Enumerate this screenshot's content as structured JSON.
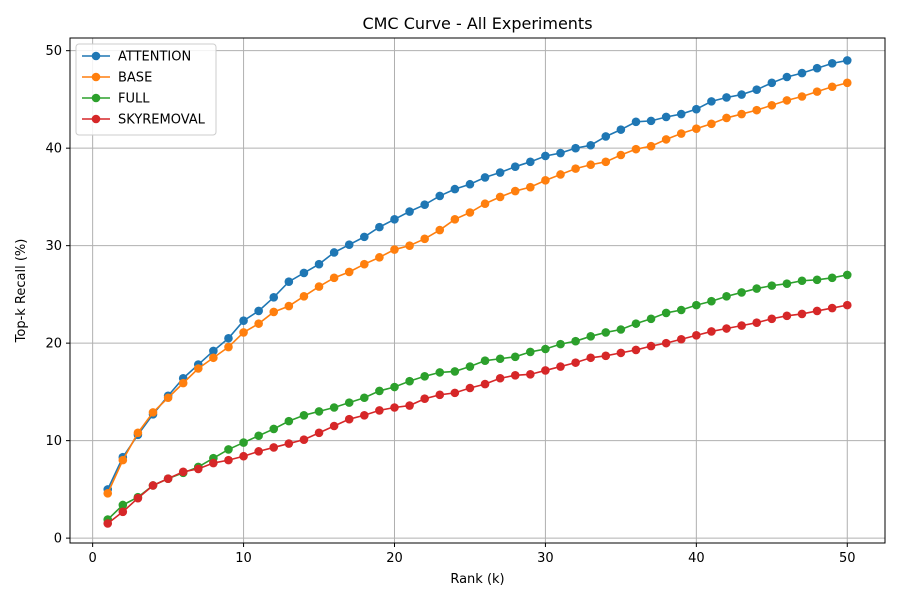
{
  "chart_data": {
    "type": "line",
    "title": "CMC Curve - All Experiments",
    "xlabel": "Rank (k)",
    "ylabel": "Top-k Recall (%)",
    "xlim": [
      -1.5,
      52.5
    ],
    "ylim": [
      -0.5,
      51.3
    ],
    "xticks": [
      0,
      10,
      20,
      30,
      40,
      50
    ],
    "yticks": [
      0,
      10,
      20,
      30,
      40,
      50
    ],
    "grid": true,
    "legend_position": "top-left",
    "x": [
      1,
      2,
      3,
      4,
      5,
      6,
      7,
      8,
      9,
      10,
      11,
      12,
      13,
      14,
      15,
      16,
      17,
      18,
      19,
      20,
      21,
      22,
      23,
      24,
      25,
      26,
      27,
      28,
      29,
      30,
      31,
      32,
      33,
      34,
      35,
      36,
      37,
      38,
      39,
      40,
      41,
      42,
      43,
      44,
      45,
      46,
      47,
      48,
      49,
      50
    ],
    "series": [
      {
        "name": "ATTENTION",
        "color": "#1f77b4",
        "values": [
          5.0,
          8.3,
          10.6,
          12.7,
          14.6,
          16.4,
          17.8,
          19.2,
          20.5,
          22.3,
          23.3,
          24.7,
          26.3,
          27.2,
          28.1,
          29.3,
          30.1,
          30.9,
          31.9,
          32.7,
          33.5,
          34.2,
          35.1,
          35.8,
          36.3,
          37.0,
          37.5,
          38.1,
          38.6,
          39.2,
          39.5,
          40.0,
          40.3,
          41.2,
          41.9,
          42.7,
          42.8,
          43.2,
          43.5,
          44.0,
          44.8,
          45.2,
          45.5,
          46.0,
          46.7,
          47.3,
          47.7,
          48.2,
          48.7,
          49.0
        ]
      },
      {
        "name": "BASE",
        "color": "#ff7f0e",
        "values": [
          4.6,
          8.0,
          10.8,
          12.9,
          14.4,
          15.9,
          17.4,
          18.5,
          19.6,
          21.1,
          22.0,
          23.2,
          23.8,
          24.8,
          25.8,
          26.7,
          27.3,
          28.1,
          28.8,
          29.6,
          30.0,
          30.7,
          31.6,
          32.7,
          33.4,
          34.3,
          35.0,
          35.6,
          36.0,
          36.7,
          37.3,
          37.9,
          38.3,
          38.6,
          39.3,
          39.9,
          40.2,
          40.9,
          41.5,
          42.0,
          42.5,
          43.1,
          43.5,
          43.9,
          44.4,
          44.9,
          45.3,
          45.8,
          46.3,
          46.7
        ]
      },
      {
        "name": "FULL",
        "color": "#2ca02c",
        "values": [
          1.9,
          3.4,
          4.2,
          5.4,
          6.1,
          6.7,
          7.3,
          8.2,
          9.1,
          9.8,
          10.5,
          11.2,
          12.0,
          12.6,
          13.0,
          13.4,
          13.9,
          14.4,
          15.1,
          15.5,
          16.1,
          16.6,
          17.0,
          17.1,
          17.6,
          18.2,
          18.4,
          18.6,
          19.1,
          19.4,
          19.9,
          20.2,
          20.7,
          21.1,
          21.4,
          22.0,
          22.5,
          23.1,
          23.4,
          23.9,
          24.3,
          24.8,
          25.2,
          25.6,
          25.9,
          26.1,
          26.4,
          26.5,
          26.7,
          27.0
        ]
      },
      {
        "name": "SKYREMOVAL",
        "color": "#d62728",
        "values": [
          1.5,
          2.7,
          4.1,
          5.4,
          6.1,
          6.8,
          7.1,
          7.7,
          8.0,
          8.4,
          8.9,
          9.3,
          9.7,
          10.1,
          10.8,
          11.5,
          12.2,
          12.6,
          13.1,
          13.4,
          13.6,
          14.3,
          14.7,
          14.9,
          15.4,
          15.8,
          16.4,
          16.7,
          16.8,
          17.2,
          17.6,
          18.0,
          18.5,
          18.7,
          19.0,
          19.3,
          19.7,
          20.0,
          20.4,
          20.8,
          21.2,
          21.5,
          21.8,
          22.1,
          22.5,
          22.8,
          23.0,
          23.3,
          23.6,
          23.9
        ]
      }
    ]
  }
}
